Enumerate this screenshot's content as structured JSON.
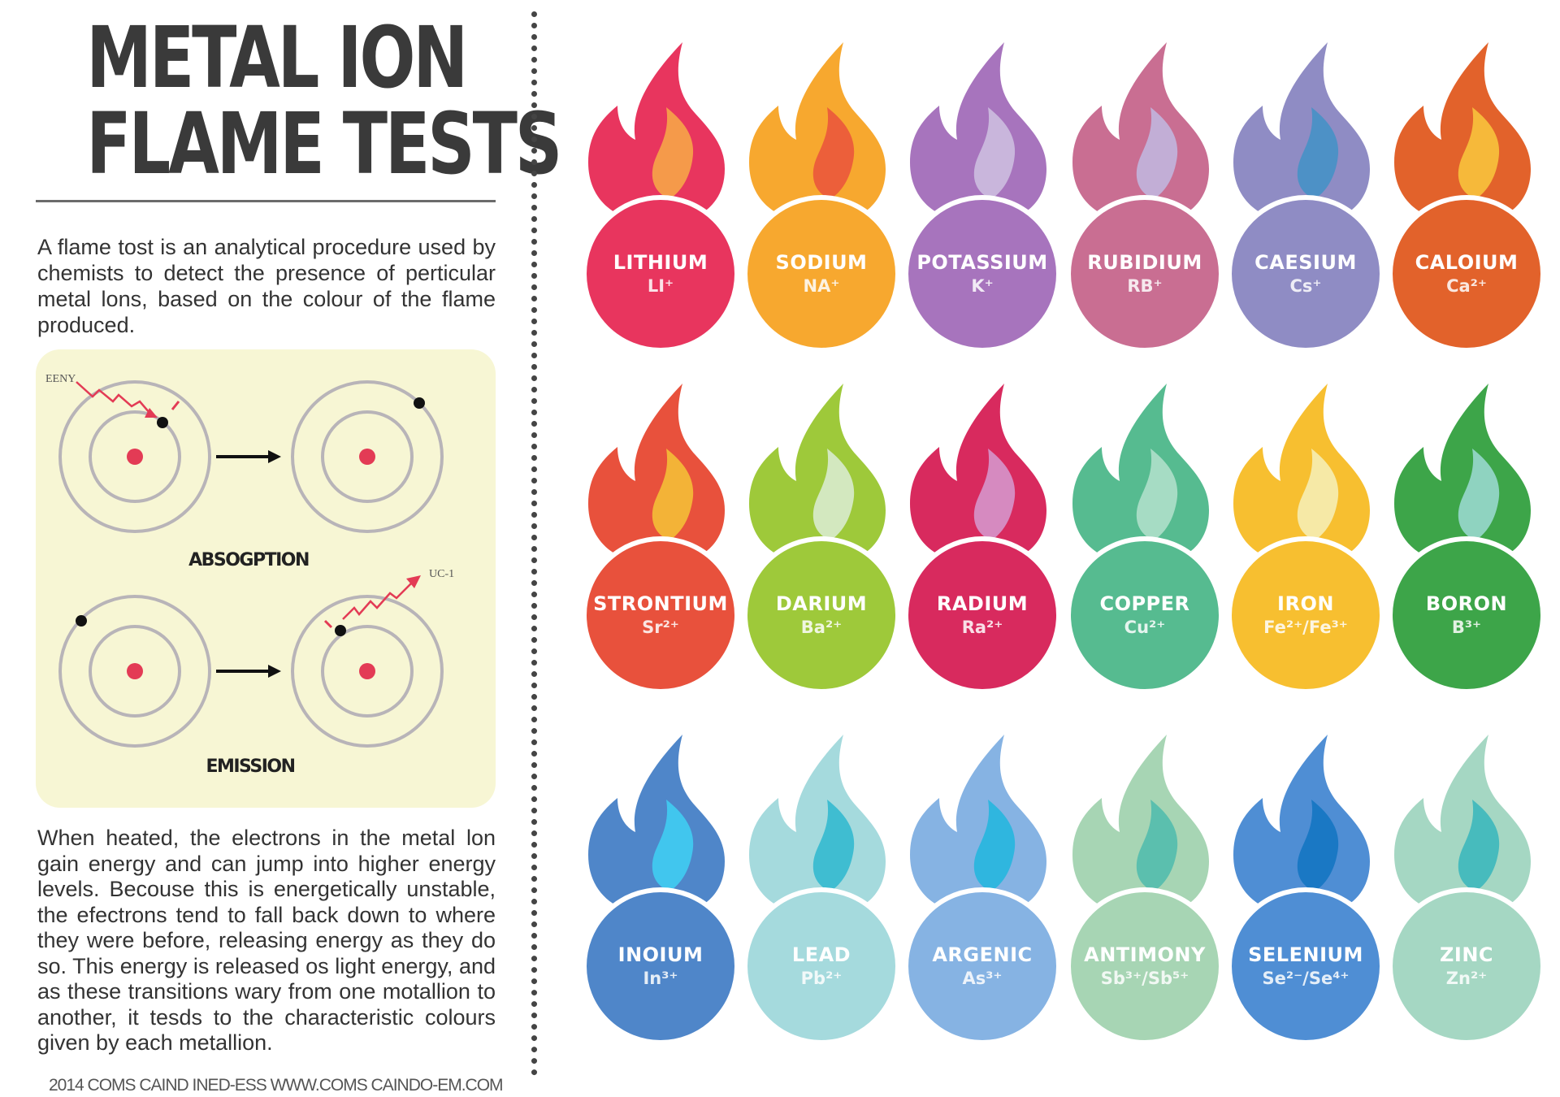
{
  "poster": {
    "title_line1": "METAL ION",
    "title_line2": "FLAME TESTS",
    "intro": "A flame tost is an analytical procedure used by chemists to detect the presence of perticular metal lons, based on the colour of the flame produced.",
    "body": "When heated, the electrons in the metal lon gain energy and can jump into higher energy levels. Becouse this is energetically unstable, the efectrons tend to fall back down to where they were before, releasing energy as they do so. This energy is released os light energy, and as these transitions wary from one motallion to another, it tesds to the characteristic colours given by each metallion.",
    "footer": "2014 COMS CAIND INED-ESS WWW.COMS CAINDO-EM.COM"
  },
  "diagram": {
    "energy_label": "EENY",
    "absorption_label": "ABSOGPTION",
    "emission_label": "EMISSION",
    "emitted_label": "UC-1"
  },
  "flames": [
    {
      "name": "LITHIUM",
      "ion": "LI⁺",
      "color": "#e8355e",
      "inner": "#f59a4a"
    },
    {
      "name": "SODIUM",
      "ion": "NA⁺",
      "color": "#f7a82f",
      "inner": "#ec5f3a"
    },
    {
      "name": "POTASSIUM",
      "ion": "K⁺",
      "color": "#a774bd",
      "inner": "#c9b6dc"
    },
    {
      "name": "RUBIDIUM",
      "ion": "RB⁺",
      "color": "#c96e92",
      "inner": "#c2aed6"
    },
    {
      "name": "CAESIUM",
      "ion": "Cs⁺",
      "color": "#8f8cc4",
      "inner": "#4d91c6"
    },
    {
      "name": "CALOIUM",
      "ion": "Ca²⁺",
      "color": "#e2622b",
      "inner": "#f6b93a"
    },
    {
      "name": "STRONTIUM",
      "ion": "Sr²⁺",
      "color": "#e8513c",
      "inner": "#f3b337"
    },
    {
      "name": "DARIUM",
      "ion": "Ba²⁺",
      "color": "#9ec93a",
      "inner": "#d3e8bf"
    },
    {
      "name": "RADIUM",
      "ion": "Ra²⁺",
      "color": "#d82a5e",
      "inner": "#d68ac0"
    },
    {
      "name": "COPPER",
      "ion": "Cu²⁺",
      "color": "#56bb90",
      "inner": "#a6dcc4"
    },
    {
      "name": "IRON",
      "ion": "Fe²⁺/Fe³⁺",
      "color": "#f7bf30",
      "inner": "#f6e9a6"
    },
    {
      "name": "BORON",
      "ion": "B³⁺",
      "color": "#3da549",
      "inner": "#8fd3c0"
    },
    {
      "name": "INOIUM",
      "ion": "In³⁺",
      "color": "#4f86c9",
      "inner": "#41c6ee"
    },
    {
      "name": "LEAD",
      "ion": "Pb²⁺",
      "color": "#a5dadd",
      "inner": "#3fbdd1"
    },
    {
      "name": "ARGENIC",
      "ion": "As³⁺",
      "color": "#86b3e3",
      "inner": "#2fb6df"
    },
    {
      "name": "ANTIMONY",
      "ion": "Sb³⁺/Sb⁵⁺",
      "color": "#a7d5b4",
      "inner": "#5bbfae"
    },
    {
      "name": "SELENIUM",
      "ion": "Se²⁻/Se⁴⁺",
      "color": "#4f8ed4",
      "inner": "#1a78c4"
    },
    {
      "name": "ZINC",
      "ion": "Zn²⁺",
      "color": "#a5d7c3",
      "inner": "#47bbbd"
    }
  ]
}
